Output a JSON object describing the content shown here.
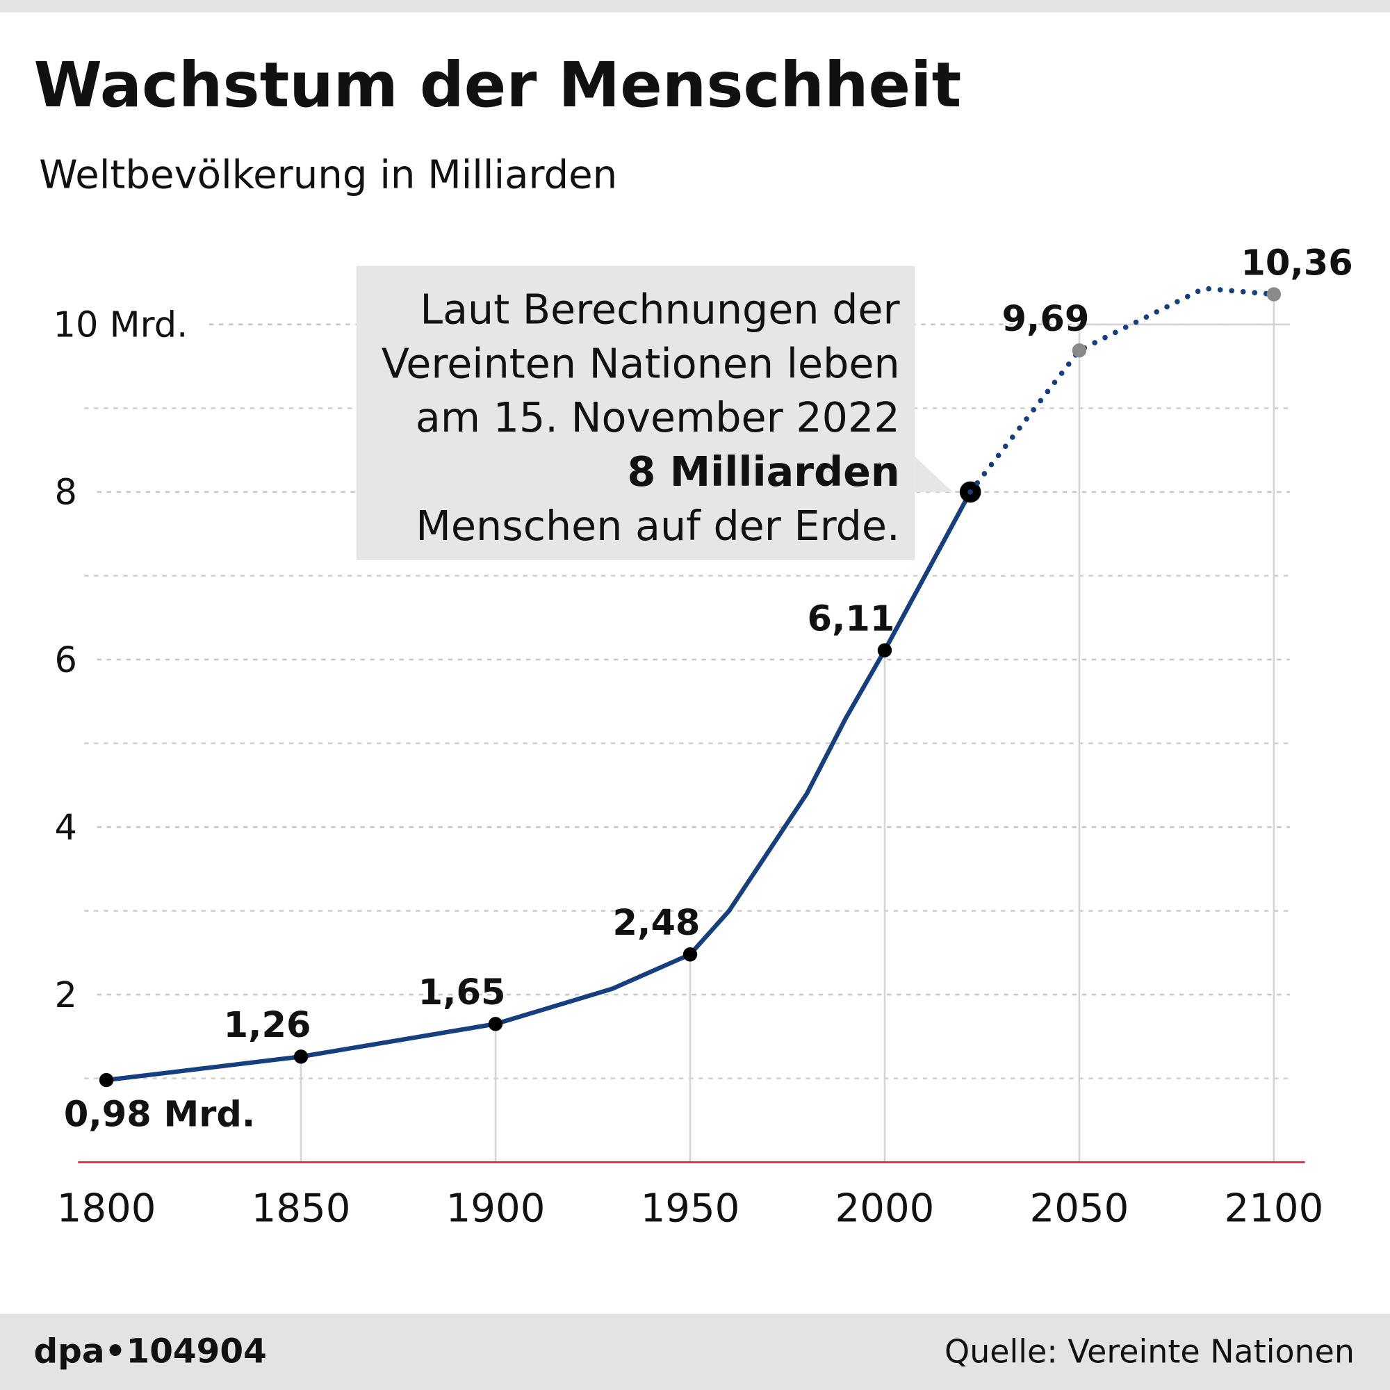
{
  "chart_data": {
    "type": "line",
    "title": "Wachstum der Menschheit",
    "subtitle": "Weltbevölkerung in Milliarden",
    "xlim": [
      1800,
      2100
    ],
    "xticks": [
      1800,
      1850,
      1900,
      1950,
      2000,
      2050,
      2100
    ],
    "ylim": [
      0,
      11
    ],
    "yticks": [
      {
        "value": 10,
        "label": "10 Mrd."
      },
      8,
      6,
      4,
      2
    ],
    "minor_yticks": [
      1,
      3,
      5,
      7,
      9
    ],
    "grid": true,
    "series": [
      {
        "color": "#163f80",
        "style": "solid",
        "marker_color": "#000000",
        "x": [
          1800,
          1850,
          1900,
          1930,
          1950,
          1960,
          1970,
          1980,
          1990,
          2000,
          2022
        ],
        "values": [
          0.98,
          1.26,
          1.65,
          2.07,
          2.48,
          3.0,
          3.7,
          4.4,
          5.3,
          6.11,
          8
        ],
        "value_labels": [
          "0,98 Mrd.",
          "1,26",
          "1,65",
          null,
          "2,48",
          null,
          null,
          null,
          null,
          "6,11",
          "8 Milliarden"
        ]
      },
      {
        "color": "#163f80",
        "style": "dotted",
        "marker_color": "#8a8a8a",
        "x": [
          2022,
          2050,
          2082,
          2100
        ],
        "values": [
          8,
          9.69,
          10.43,
          10.36
        ],
        "value_labels": [
          null,
          "9,69",
          null,
          "10,36"
        ]
      }
    ],
    "annotation": {
      "lines_before": [
        "Laut Berechnungen der",
        "Vereinten Nationen leben",
        "am 15. November 2022"
      ],
      "lines_after": [
        "Menschen auf der Erde."
      ]
    },
    "footer": {
      "left": "dpa•104904",
      "right": "Quelle: Vereinte Nationen"
    }
  }
}
